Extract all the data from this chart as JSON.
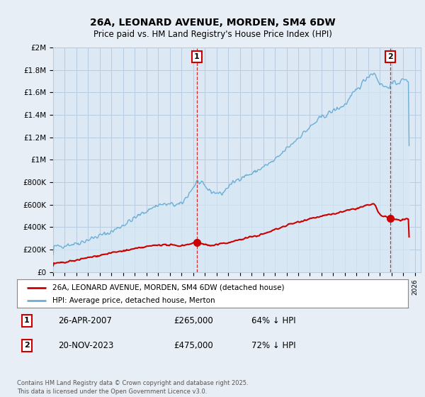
{
  "title": "26A, LEONARD AVENUE, MORDEN, SM4 6DW",
  "subtitle": "Price paid vs. HM Land Registry's House Price Index (HPI)",
  "ylim": [
    0,
    2000000
  ],
  "yticks": [
    0,
    200000,
    400000,
    600000,
    800000,
    1000000,
    1200000,
    1400000,
    1600000,
    1800000,
    2000000
  ],
  "ytick_labels": [
    "£0",
    "£200K",
    "£400K",
    "£600K",
    "£800K",
    "£1M",
    "£1.2M",
    "£1.4M",
    "£1.6M",
    "£1.8M",
    "£2M"
  ],
  "xlim_start": 1995.0,
  "xlim_end": 2026.5,
  "hpi_color": "#6baed6",
  "hpi_fill_color": "#d6e8f5",
  "price_color": "#cc0000",
  "vline_color": "#cc0000",
  "sale1_x": 2007.32,
  "sale1_y": 265000,
  "sale1_label": "1",
  "sale2_x": 2023.89,
  "sale2_y": 475000,
  "sale2_label": "2",
  "legend_label1": "26A, LEONARD AVENUE, MORDEN, SM4 6DW (detached house)",
  "legend_label2": "HPI: Average price, detached house, Merton",
  "annotation1_date": "26-APR-2007",
  "annotation1_price": "£265,000",
  "annotation1_hpi": "64% ↓ HPI",
  "annotation2_date": "20-NOV-2023",
  "annotation2_price": "£475,000",
  "annotation2_hpi": "72% ↓ HPI",
  "footer": "Contains HM Land Registry data © Crown copyright and database right 2025.\nThis data is licensed under the Open Government Licence v3.0.",
  "bg_color": "#e8eef5",
  "plot_bg_color": "#dce8f4",
  "grid_color": "#b8cce0"
}
